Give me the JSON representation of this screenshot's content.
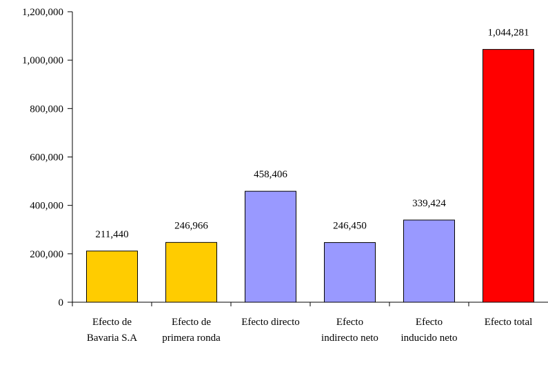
{
  "chart_data": {
    "type": "bar",
    "categories": [
      "Efecto de Bavaria S.A",
      "Efecto de primera ronda",
      "Efecto directo",
      "Efecto indirecto neto",
      "Efecto inducido neto",
      "Efecto total"
    ],
    "values": [
      211440,
      246966,
      458406,
      246450,
      339424,
      1044281
    ],
    "value_labels": [
      "211,440",
      "246,966",
      "458,406",
      "246,450",
      "339,424",
      "1,044,281"
    ],
    "colors": [
      "#ffcc00",
      "#ffcc00",
      "#9999ff",
      "#9999ff",
      "#9999ff",
      "#ff0000"
    ],
    "ylim": [
      0,
      1200000
    ],
    "yticks": [
      0,
      {
        "value": 200000,
        "label": "200,000"
      },
      {
        "value": 400000,
        "label": "400,000"
      },
      {
        "value": 600000,
        "label": "600,000"
      },
      {
        "value": 800000,
        "label": "800,000"
      },
      {
        "value": 1000000,
        "label": "1,000,000"
      },
      {
        "value": 1200000,
        "label": "1,200,000"
      }
    ],
    "grid": false
  }
}
